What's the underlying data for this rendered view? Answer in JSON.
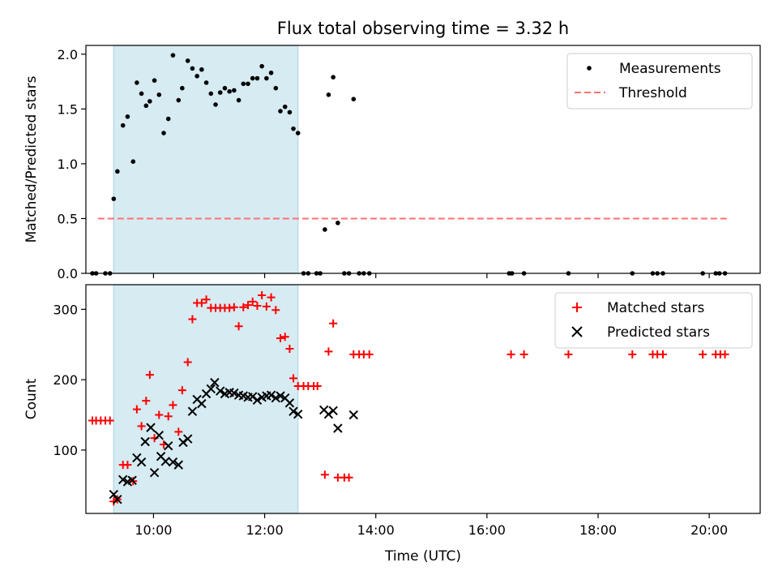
{
  "chart_data": [
    {
      "type": "scatter",
      "title": "Flux total observing time = 3.32 h",
      "ylabel": "Matched/Predicted stars",
      "xlabel": "",
      "xlim": [
        "08:47",
        "20:55"
      ],
      "ylim": [
        0,
        2.08
      ],
      "yticks": [
        "0.0",
        "0.5",
        "1.0",
        "1.5",
        "2.0"
      ],
      "grid": false,
      "legend_placement": "top-right",
      "shaded_interval": {
        "x": [
          "09:17",
          "12:36"
        ],
        "color": "#add8e6"
      },
      "series": [
        {
          "name": "Measurements",
          "marker": "dot",
          "color": "#000000",
          "points": [
            [
              "08:54",
              0
            ],
            [
              "08:58",
              0
            ],
            [
              "09:08",
              0
            ],
            [
              "09:13",
              0
            ],
            [
              "09:17",
              0.68
            ],
            [
              "09:21",
              0.93
            ],
            [
              "09:27",
              1.35
            ],
            [
              "09:32",
              1.43
            ],
            [
              "09:38",
              1.02
            ],
            [
              "09:42",
              1.74
            ],
            [
              "09:47",
              1.64
            ],
            [
              "09:52",
              1.53
            ],
            [
              "09:56",
              1.57
            ],
            [
              "10:01",
              1.76
            ],
            [
              "10:06",
              1.63
            ],
            [
              "10:11",
              1.28
            ],
            [
              "10:16",
              1.41
            ],
            [
              "10:21",
              1.99
            ],
            [
              "10:27",
              1.58
            ],
            [
              "10:31",
              1.69
            ],
            [
              "10:37",
              1.94
            ],
            [
              "10:42",
              1.87
            ],
            [
              "10:47",
              1.8
            ],
            [
              "10:52",
              1.86
            ],
            [
              "10:57",
              1.74
            ],
            [
              "11:02",
              1.64
            ],
            [
              "11:07",
              1.54
            ],
            [
              "11:12",
              1.65
            ],
            [
              "11:17",
              1.69
            ],
            [
              "11:22",
              1.66
            ],
            [
              "11:27",
              1.67
            ],
            [
              "11:32",
              1.58
            ],
            [
              "11:37",
              1.73
            ],
            [
              "11:42",
              1.73
            ],
            [
              "11:47",
              1.78
            ],
            [
              "11:52",
              1.78
            ],
            [
              "11:57",
              1.89
            ],
            [
              "12:02",
              1.78
            ],
            [
              "12:07",
              1.83
            ],
            [
              "12:12",
              1.69
            ],
            [
              "12:17",
              1.48
            ],
            [
              "12:22",
              1.52
            ],
            [
              "12:27",
              1.47
            ],
            [
              "12:31",
              1.32
            ],
            [
              "12:36",
              1.28
            ],
            [
              "12:42",
              0
            ],
            [
              "12:47",
              0
            ],
            [
              "12:56",
              0
            ],
            [
              "13:00",
              0
            ],
            [
              "13:05",
              0.4
            ],
            [
              "13:09",
              1.63
            ],
            [
              "13:14",
              1.79
            ],
            [
              "13:19",
              0.46
            ],
            [
              "13:26",
              0
            ],
            [
              "13:31",
              0
            ],
            [
              "13:36",
              1.59
            ],
            [
              "13:42",
              0
            ],
            [
              "13:47",
              0
            ],
            [
              "13:53",
              0
            ],
            [
              "16:24",
              0
            ],
            [
              "16:27",
              0
            ],
            [
              "16:40",
              0
            ],
            [
              "17:28",
              0
            ],
            [
              "18:37",
              0
            ],
            [
              "18:59",
              0
            ],
            [
              "19:04",
              0
            ],
            [
              "19:10",
              0
            ],
            [
              "19:53",
              0
            ],
            [
              "20:07",
              0
            ],
            [
              "20:11",
              0
            ],
            [
              "20:17",
              0
            ]
          ]
        },
        {
          "name": "Threshold",
          "marker": "dashed-line",
          "color": "#ff7070",
          "points": [
            [
              "09:00",
              0.5
            ],
            [
              "20:22",
              0.5
            ]
          ]
        }
      ]
    },
    {
      "type": "scatter",
      "title": "",
      "ylabel": "Count",
      "xlabel": "Time (UTC)",
      "xlim": [
        "08:47",
        "20:55"
      ],
      "ylim": [
        10,
        335
      ],
      "yticks": [
        "100",
        "200",
        "300"
      ],
      "xticks": [
        "10:00",
        "12:00",
        "14:00",
        "16:00",
        "18:00",
        "20:00"
      ],
      "grid": false,
      "legend_placement": "top-right",
      "shaded_interval": {
        "x": [
          "09:17",
          "12:36"
        ],
        "color": "#add8e6"
      },
      "series": [
        {
          "name": "Matched stars",
          "marker": "plus",
          "color": "#ff0000",
          "points": [
            [
              "08:54",
              142
            ],
            [
              "08:58",
              142
            ],
            [
              "09:03",
              142
            ],
            [
              "09:08",
              142
            ],
            [
              "09:13",
              142
            ],
            [
              "09:17",
              27
            ],
            [
              "09:21",
              30
            ],
            [
              "09:27",
              79
            ],
            [
              "09:32",
              79
            ],
            [
              "09:38",
              56
            ],
            [
              "09:42",
              158
            ],
            [
              "09:47",
              134
            ],
            [
              "09:52",
              170
            ],
            [
              "09:56",
              207
            ],
            [
              "10:01",
              117
            ],
            [
              "10:06",
              150
            ],
            [
              "10:11",
              108
            ],
            [
              "10:16",
              148
            ],
            [
              "10:21",
              164
            ],
            [
              "10:27",
              126
            ],
            [
              "10:31",
              185
            ],
            [
              "10:37",
              225
            ],
            [
              "10:42",
              286
            ],
            [
              "10:47",
              309
            ],
            [
              "10:52",
              309
            ],
            [
              "10:57",
              314
            ],
            [
              "11:02",
              302
            ],
            [
              "11:07",
              302
            ],
            [
              "11:12",
              302
            ],
            [
              "11:17",
              302
            ],
            [
              "11:22",
              302
            ],
            [
              "11:27",
              303
            ],
            [
              "11:32",
              276
            ],
            [
              "11:37",
              303
            ],
            [
              "11:42",
              306
            ],
            [
              "11:47",
              311
            ],
            [
              "11:52",
              305
            ],
            [
              "11:57",
              320
            ],
            [
              "12:02",
              304
            ],
            [
              "12:07",
              317
            ],
            [
              "12:12",
              299
            ],
            [
              "12:17",
              259
            ],
            [
              "12:22",
              261
            ],
            [
              "12:27",
              244
            ],
            [
              "12:31",
              202
            ],
            [
              "12:36",
              191
            ],
            [
              "12:42",
              191
            ],
            [
              "12:47",
              191
            ],
            [
              "12:53",
              191
            ],
            [
              "12:57",
              191
            ],
            [
              "13:05",
              65
            ],
            [
              "13:09",
              240
            ],
            [
              "13:14",
              280
            ],
            [
              "13:19",
              61
            ],
            [
              "13:26",
              61
            ],
            [
              "13:31",
              61
            ],
            [
              "13:36",
              236
            ],
            [
              "13:42",
              236
            ],
            [
              "13:47",
              236
            ],
            [
              "13:53",
              236
            ],
            [
              "16:26",
              236
            ],
            [
              "16:40",
              236
            ],
            [
              "17:28",
              236
            ],
            [
              "18:37",
              236
            ],
            [
              "18:59",
              236
            ],
            [
              "19:04",
              236
            ],
            [
              "19:10",
              236
            ],
            [
              "19:53",
              236
            ],
            [
              "20:07",
              236
            ],
            [
              "20:12",
              236
            ],
            [
              "20:17",
              236
            ]
          ]
        },
        {
          "name": "Predicted stars",
          "marker": "x",
          "color": "#000000",
          "points": [
            [
              "09:17",
              37
            ],
            [
              "09:21",
              30
            ],
            [
              "09:27",
              58
            ],
            [
              "09:32",
              55
            ],
            [
              "09:37",
              57
            ],
            [
              "09:42",
              89
            ],
            [
              "09:47",
              83
            ],
            [
              "09:51",
              112
            ],
            [
              "09:57",
              132
            ],
            [
              "10:01",
              68
            ],
            [
              "10:06",
              121
            ],
            [
              "10:08",
              91
            ],
            [
              "10:13",
              84
            ],
            [
              "10:16",
              106
            ],
            [
              "10:21",
              83
            ],
            [
              "10:27",
              79
            ],
            [
              "10:32",
              111
            ],
            [
              "10:37",
              116
            ],
            [
              "10:42",
              155
            ],
            [
              "10:47",
              172
            ],
            [
              "10:52",
              166
            ],
            [
              "10:57",
              180
            ],
            [
              "11:02",
              187
            ],
            [
              "11:06",
              196
            ],
            [
              "11:12",
              184
            ],
            [
              "11:17",
              180
            ],
            [
              "11:22",
              182
            ],
            [
              "11:27",
              181
            ],
            [
              "11:32",
              178
            ],
            [
              "11:37",
              177
            ],
            [
              "11:42",
              175
            ],
            [
              "11:47",
              176
            ],
            [
              "11:52",
              171
            ],
            [
              "11:57",
              175
            ],
            [
              "12:02",
              177
            ],
            [
              "12:07",
              178
            ],
            [
              "12:12",
              174
            ],
            [
              "12:17",
              177
            ],
            [
              "12:22",
              174
            ],
            [
              "12:27",
              167
            ],
            [
              "12:31",
              155
            ],
            [
              "12:36",
              151
            ],
            [
              "13:04",
              157
            ],
            [
              "13:09",
              151
            ],
            [
              "13:14",
              156
            ],
            [
              "13:19",
              131
            ],
            [
              "13:36",
              150
            ]
          ]
        }
      ]
    }
  ]
}
